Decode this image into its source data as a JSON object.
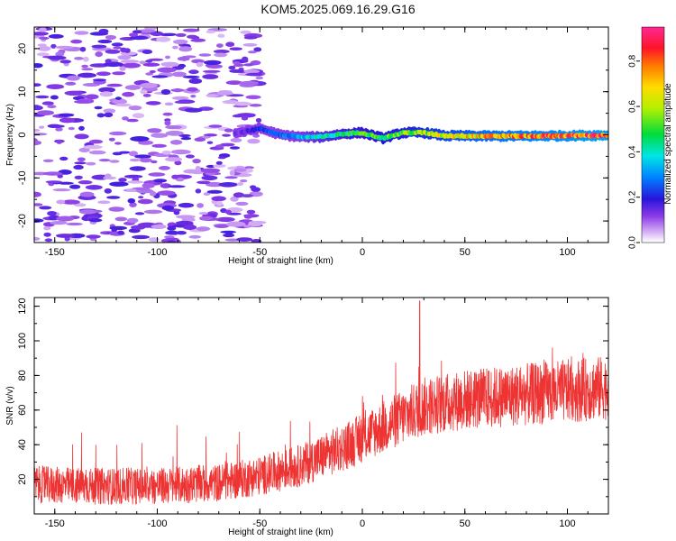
{
  "title": "KOM5.2025.069.16.29.G16",
  "chart_data": [
    {
      "type": "heatmap",
      "xlabel": "Height of straight line (km)",
      "ylabel": "Frequency (Hz)",
      "xlim": [
        -160,
        120
      ],
      "ylim": [
        -25,
        25
      ],
      "x_ticks": [
        -150,
        -100,
        -50,
        0,
        50,
        100
      ],
      "y_ticks": [
        -20,
        -10,
        0,
        10,
        20
      ],
      "colorbar": {
        "label": "Normalized spectral amplitude",
        "range": [
          0,
          0.95
        ],
        "ticks": [
          0.0,
          0.2,
          0.4,
          0.6,
          0.8
        ]
      },
      "ridge": {
        "description_points": [
          {
            "x": -60,
            "y": 0.5
          },
          {
            "x": -50,
            "y": 1.5
          },
          {
            "x": -40,
            "y": 0.0
          },
          {
            "x": -30,
            "y": -0.5
          },
          {
            "x": -20,
            "y": -0.5
          },
          {
            "x": -10,
            "y": 0.2
          },
          {
            "x": 0,
            "y": 0.5
          },
          {
            "x": 10,
            "y": -0.8
          },
          {
            "x": 20,
            "y": 0.5
          },
          {
            "x": 30,
            "y": 0.5
          },
          {
            "x": 40,
            "y": -0.2
          },
          {
            "x": 60,
            "y": -0.3
          },
          {
            "x": 80,
            "y": -0.3
          },
          {
            "x": 100,
            "y": -0.2
          },
          {
            "x": 120,
            "y": -0.1
          }
        ],
        "amplitude": [
          {
            "x": -60,
            "a": 0.15
          },
          {
            "x": -40,
            "a": 0.3
          },
          {
            "x": -20,
            "a": 0.45
          },
          {
            "x": 0,
            "a": 0.55
          },
          {
            "x": 20,
            "a": 0.6
          },
          {
            "x": 40,
            "a": 0.7
          },
          {
            "x": 60,
            "a": 0.8
          },
          {
            "x": 80,
            "a": 0.85
          },
          {
            "x": 100,
            "a": 0.9
          },
          {
            "x": 120,
            "a": 0.95
          }
        ]
      },
      "noise_region": {
        "x_range": [
          -160,
          -60
        ],
        "amplitude": 0.05
      }
    },
    {
      "type": "line",
      "xlabel": "Height of straight line (km)",
      "ylabel": "SNR (v/v)",
      "xlim": [
        -160,
        120
      ],
      "ylim": [
        0,
        125
      ],
      "x_ticks": [
        -150,
        -100,
        -50,
        0,
        50,
        100
      ],
      "y_ticks": [
        20,
        40,
        60,
        80,
        100,
        120
      ],
      "series": [
        {
          "color": "#ee3333",
          "trend_points": [
            {
              "x": -160,
              "y": 17
            },
            {
              "x": -130,
              "y": 16
            },
            {
              "x": -100,
              "y": 16
            },
            {
              "x": -70,
              "y": 18
            },
            {
              "x": -50,
              "y": 22
            },
            {
              "x": -30,
              "y": 28
            },
            {
              "x": -10,
              "y": 38
            },
            {
              "x": 10,
              "y": 50
            },
            {
              "x": 30,
              "y": 62
            },
            {
              "x": 50,
              "y": 66
            },
            {
              "x": 70,
              "y": 68
            },
            {
              "x": 90,
              "y": 70
            },
            {
              "x": 110,
              "y": 72
            },
            {
              "x": 120,
              "y": 73
            }
          ],
          "noise_amplitude": 14,
          "peak": {
            "x": 28,
            "y": 123
          }
        }
      ]
    }
  ]
}
